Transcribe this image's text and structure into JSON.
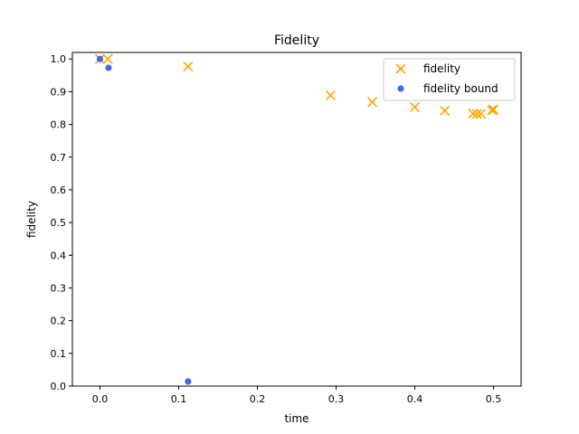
{
  "chart_data": {
    "type": "scatter",
    "title": "Fidelity",
    "xlabel": "time",
    "ylabel": "fidelity",
    "xlim": [
      -0.035,
      0.535
    ],
    "ylim": [
      0.0,
      1.02
    ],
    "xticks": [
      0.0,
      0.1,
      0.2,
      0.3,
      0.4,
      0.5
    ],
    "xtick_labels": [
      "0.0",
      "0.1",
      "0.2",
      "0.3",
      "0.4",
      "0.5"
    ],
    "yticks": [
      0.0,
      0.1,
      0.2,
      0.3,
      0.4,
      0.5,
      0.6,
      0.7,
      0.8,
      0.9,
      1.0
    ],
    "ytick_labels": [
      "0.0",
      "0.1",
      "0.2",
      "0.3",
      "0.4",
      "0.5",
      "0.6",
      "0.7",
      "0.8",
      "0.9",
      "1.0"
    ],
    "grid": false,
    "legend_position": "top-right",
    "series": [
      {
        "name": "fidelity",
        "marker": "x",
        "color": "#ffa500",
        "x": [
          0.0,
          0.01,
          0.112,
          0.293,
          0.346,
          0.4,
          0.438,
          0.474,
          0.479,
          0.484,
          0.498,
          0.5
        ],
        "y": [
          1.0,
          1.0,
          0.977,
          0.889,
          0.868,
          0.853,
          0.842,
          0.833,
          0.832,
          0.832,
          0.844,
          0.845
        ]
      },
      {
        "name": "fidelity bound",
        "marker": "circle",
        "color": "#4169e1",
        "x": [
          0.0,
          0.011,
          0.112
        ],
        "y": [
          1.0,
          0.973,
          0.014
        ]
      }
    ]
  }
}
